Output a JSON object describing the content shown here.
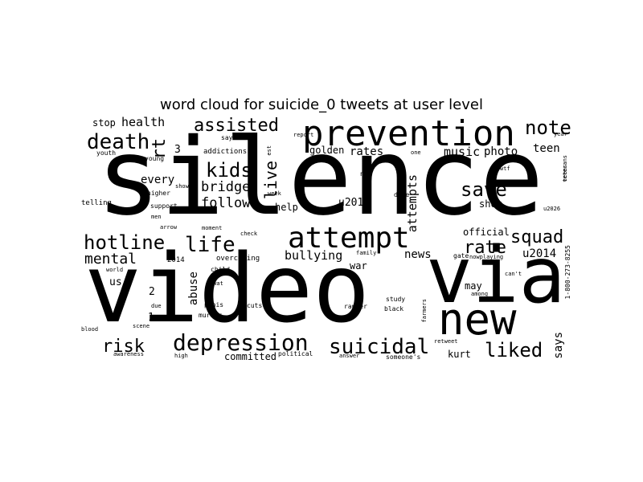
{
  "title": "word cloud for suicide_0 tweets at user level",
  "words": [
    {
      "text": "silence",
      "color": "#000000"
    },
    {
      "text": "video",
      "color": "#000000"
    },
    {
      "text": "via",
      "color": "#000000"
    },
    {
      "text": "prevention",
      "color": "#000000"
    },
    {
      "text": "attempt",
      "color": "#000000"
    },
    {
      "text": "new",
      "color": "#000000"
    },
    {
      "text": "depression",
      "color": "#000000"
    },
    {
      "text": "suicidal",
      "color": "#000000"
    },
    {
      "text": "hotline",
      "color": "#000000"
    },
    {
      "text": "life",
      "color": "#000000"
    },
    {
      "text": "assisted",
      "color": "#000000"
    },
    {
      "text": "death",
      "color": "#000000"
    },
    {
      "text": "note",
      "color": "#000000"
    },
    {
      "text": "save",
      "color": "#000000"
    },
    {
      "text": "risk",
      "color": "#000000"
    },
    {
      "text": "liked",
      "color": "#000000"
    },
    {
      "text": "squad",
      "color": "#000000"
    },
    {
      "text": "rate",
      "color": "#000000"
    },
    {
      "text": "kids",
      "color": "#000000"
    },
    {
      "text": "mental",
      "color": "#000000"
    },
    {
      "text": "bridge",
      "color": "#000000"
    },
    {
      "text": "follow",
      "color": "#000000"
    },
    {
      "text": "live",
      "color": "#000000"
    },
    {
      "text": "attempts",
      "color": "#000000"
    },
    {
      "text": "rt",
      "color": "#000000"
    },
    {
      "text": "health",
      "color": "#000000"
    },
    {
      "text": "every",
      "color": "#000000"
    },
    {
      "text": "bullying",
      "color": "#000000"
    },
    {
      "text": "news",
      "color": "#000000"
    },
    {
      "text": "abuse",
      "color": "#000000"
    },
    {
      "text": "rates",
      "color": "#000000"
    },
    {
      "text": "music",
      "color": "#000000"
    },
    {
      "text": "photo",
      "color": "#000000"
    },
    {
      "text": "teen",
      "color": "#000000"
    },
    {
      "text": "u2014",
      "color": "#000000"
    },
    {
      "text": "says",
      "color": "#000000"
    },
    {
      "text": "kurt",
      "color": "#000000"
    },
    {
      "text": "official",
      "color": "#000000"
    },
    {
      "text": "u2013",
      "color": "#000000"
    },
    {
      "text": "us",
      "color": "#000000"
    },
    {
      "text": "stop",
      "color": "#000000"
    },
    {
      "text": "golden",
      "color": "#000000"
    },
    {
      "text": "help",
      "color": "#000000"
    },
    {
      "text": "war",
      "color": "#000000"
    },
    {
      "text": "committed",
      "color": "#000000"
    },
    {
      "text": "may",
      "color": "#000000"
    },
    {
      "text": "shot",
      "color": "#000000"
    },
    {
      "text": "3",
      "color": "#000000"
    },
    {
      "text": "2",
      "color": "#000000"
    },
    {
      "text": "1",
      "color": "#000000"
    },
    {
      "text": "addictions",
      "color": "#000000"
    },
    {
      "text": "youth",
      "color": "#000000"
    },
    {
      "text": "young",
      "color": "#000000"
    },
    {
      "text": "show",
      "color": "#000000"
    },
    {
      "text": "higher",
      "color": "#000000"
    },
    {
      "text": "telling",
      "color": "#000000"
    },
    {
      "text": "support",
      "color": "#000000"
    },
    {
      "text": "men",
      "color": "#000000"
    },
    {
      "text": "arrow",
      "color": "#000000"
    },
    {
      "text": "moment",
      "color": "#000000"
    },
    {
      "text": "check",
      "color": "#000000"
    },
    {
      "text": "overcoming",
      "color": "#000000"
    },
    {
      "text": "2014",
      "color": "#000000"
    },
    {
      "text": "child",
      "color": "#000000"
    },
    {
      "text": "world",
      "color": "#000000"
    },
    {
      "text": "swat",
      "color": "#000000"
    },
    {
      "text": "due",
      "color": "#000000"
    },
    {
      "text": "penis",
      "color": "#000000"
    },
    {
      "text": "cuts",
      "color": "#000000"
    },
    {
      "text": "murder",
      "color": "#000000"
    },
    {
      "text": "scene",
      "color": "#000000"
    },
    {
      "text": "blood",
      "color": "#000000"
    },
    {
      "text": "awareness",
      "color": "#000000"
    },
    {
      "text": "high",
      "color": "#000000"
    },
    {
      "text": "political",
      "color": "#000000"
    },
    {
      "text": "answer",
      "color": "#000000"
    },
    {
      "text": "someone's",
      "color": "#000000"
    },
    {
      "text": "retweet",
      "color": "#000000"
    },
    {
      "text": "rapper",
      "color": "#000000"
    },
    {
      "text": "black",
      "color": "#000000"
    },
    {
      "text": "study",
      "color": "#000000"
    },
    {
      "text": "farmers",
      "color": "#000000"
    },
    {
      "text": "among",
      "color": "#000000"
    },
    {
      "text": "can't",
      "color": "#000000"
    },
    {
      "text": "nowplaying",
      "color": "#000000"
    },
    {
      "text": "gate",
      "color": "#000000"
    },
    {
      "text": "family",
      "color": "#000000"
    },
    {
      "text": "np",
      "color": "#000000"
    },
    {
      "text": "dive",
      "color": "#000000"
    },
    {
      "text": "wtf",
      "color": "#000000"
    },
    {
      "text": "one",
      "color": "#000000"
    },
    {
      "text": "est",
      "color": "#000000"
    },
    {
      "text": "report",
      "color": "#000000"
    },
    {
      "text": "say",
      "color": "#000000"
    },
    {
      "text": "week",
      "color": "#000000"
    },
    {
      "text": "year",
      "color": "#000000"
    },
    {
      "text": "veterans",
      "color": "#000000"
    },
    {
      "text": "teens",
      "color": "#000000"
    },
    {
      "text": "u2026",
      "color": "#000000"
    },
    {
      "text": "1-800-273-8255",
      "color": "#000000"
    }
  ]
}
